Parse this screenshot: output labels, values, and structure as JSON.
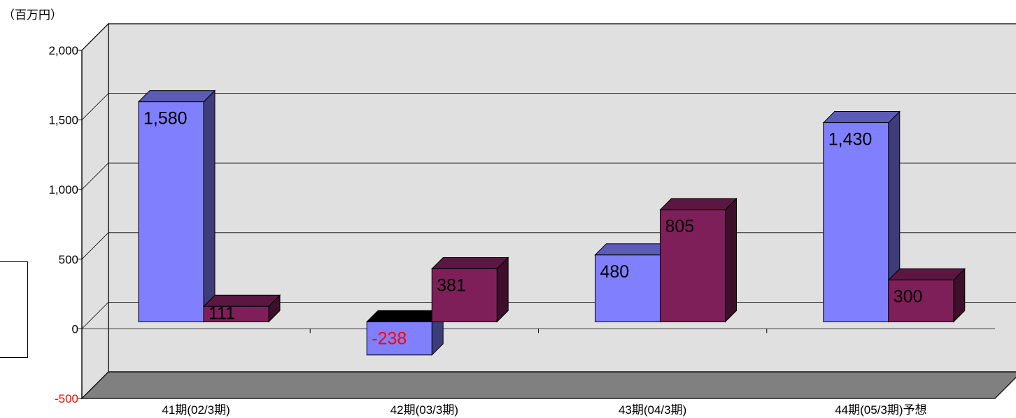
{
  "chart_data": {
    "type": "bar",
    "title": "",
    "unit_label": "（百万円）",
    "xlabel": "",
    "ylabel": "",
    "categories": [
      "41期(02/3期)",
      "42期(03/3期)",
      "43期(04/3期)",
      "44期(05/3期)予想"
    ],
    "series": [
      {
        "values": [
          1580,
          -238,
          480,
          1430
        ],
        "value_labels": [
          "1,580",
          "-238",
          "480",
          "1,430"
        ],
        "color": "#8080ff"
      },
      {
        "values": [
          111,
          381,
          805,
          300
        ],
        "value_labels": [
          "111",
          "381",
          "805",
          "300"
        ],
        "color": "#7f1f5a"
      }
    ],
    "yticks": [
      -500,
      0,
      500,
      1000,
      1500,
      2000
    ],
    "ytick_labels": [
      "-500",
      "0",
      "500",
      "1,000",
      "1,500",
      "2,000"
    ],
    "ylim": [
      -500,
      2000
    ],
    "negative_label_color": "#ff0000",
    "grid": true,
    "legend": "none"
  }
}
